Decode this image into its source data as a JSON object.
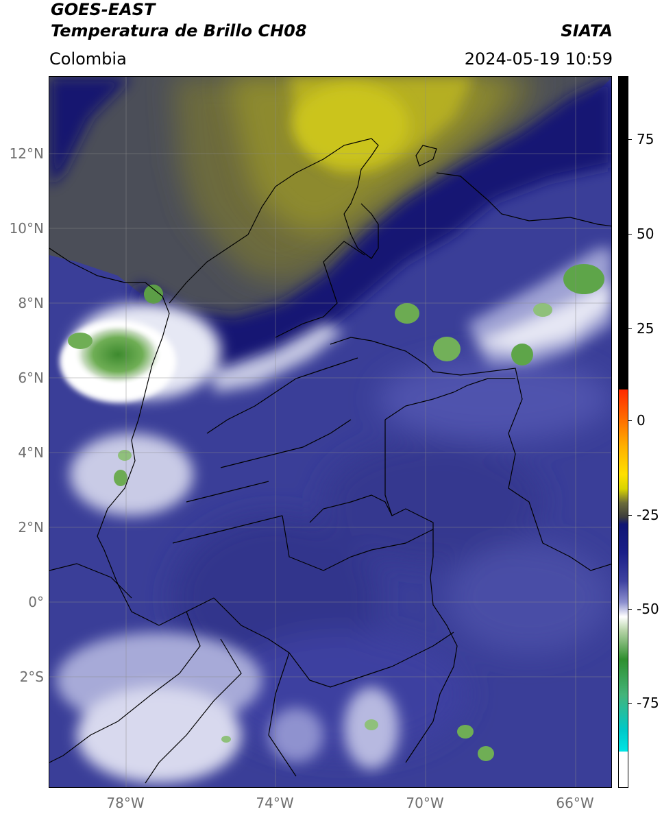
{
  "header": {
    "satellite": "GOES-EAST",
    "product": "Temperatura de Brillo CH08",
    "source": "SIATA",
    "region": "Colombia",
    "datetime": "2024-05-19 10:59"
  },
  "map": {
    "lat_labels": [
      "12°N",
      "10°N",
      "8°N",
      "6°N",
      "4°N",
      "2°N",
      "0°",
      "2°S"
    ],
    "lon_labels": [
      "78°W",
      "74°W",
      "70°W",
      "66°W"
    ],
    "colors": {
      "dry_yellow": "#c7c01c",
      "dry_olive": "#6f6b36",
      "dry_gray": "#4a4d55",
      "deep_blue": "#12166e",
      "mid_blue": "#3c3f9b",
      "light_blue": "#7d80c4",
      "cloud_white": "#eceef6",
      "cold_green": "#4e9a3a"
    }
  },
  "colorbar": {
    "labels": [
      "75",
      "50",
      "25",
      "0",
      "-25",
      "-50",
      "-75"
    ],
    "colors": [
      "#000000",
      "#ff2a00",
      "#ffe000",
      "#3c3c3c",
      "#0f1574",
      "#ffffff",
      "#2f8f2f",
      "#00e5e5"
    ]
  }
}
